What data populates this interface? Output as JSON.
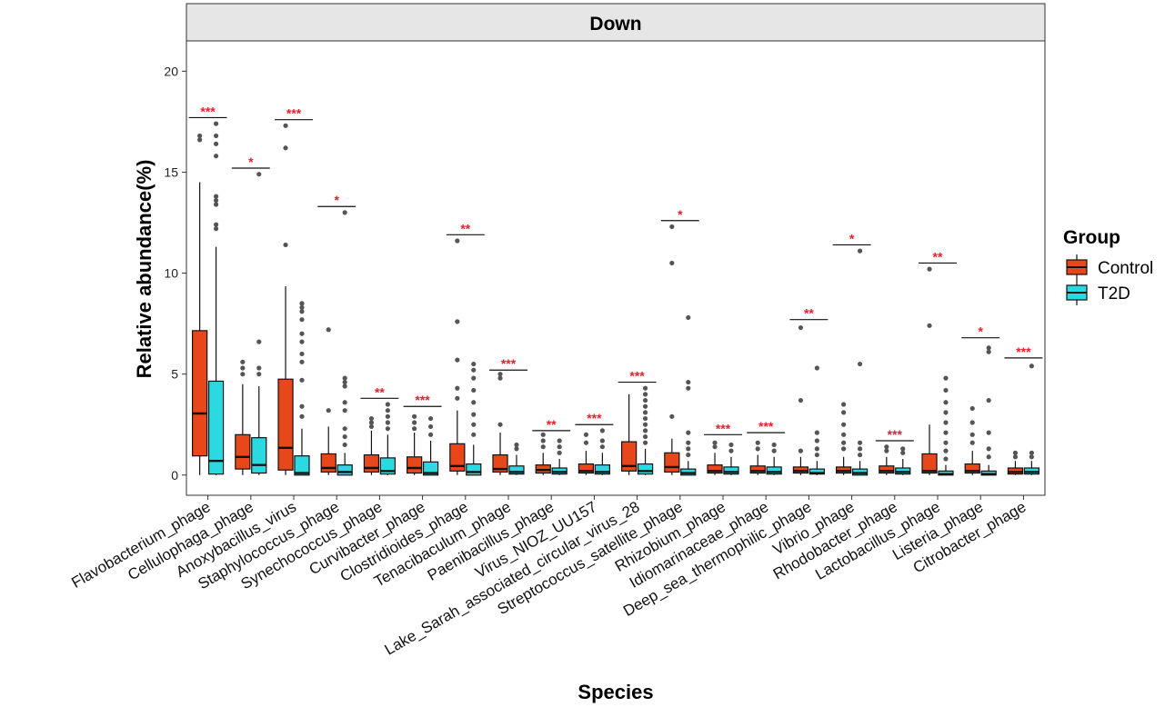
{
  "chart_data": {
    "type": "boxplot",
    "facet_title": "Down",
    "xlabel": "Species",
    "ylabel": "Relative abundance(%)",
    "ylim": [
      -1.0,
      21.5
    ],
    "yticks": [
      0,
      5,
      10,
      15,
      20
    ],
    "legend": {
      "title": "Group",
      "position": "right",
      "entries": [
        {
          "name": "Control",
          "color": "#E8461B"
        },
        {
          "name": "T2D",
          "color": "#2BD9E0"
        }
      ]
    },
    "significance_color": "#E8202A",
    "categories": [
      {
        "name": "Flavobacterium_phage",
        "sig": "***",
        "sig_y": 17.7,
        "control": {
          "min": 0,
          "q1": 0.95,
          "median": 3.05,
          "q3": 7.15,
          "max": 14.5,
          "outliers": [
            16.6,
            16.8
          ]
        },
        "t2d": {
          "min": 0,
          "q1": 0.05,
          "median": 0.7,
          "q3": 4.65,
          "max": 11.3,
          "outliers": [
            12.2,
            12.4,
            13.4,
            13.6,
            13.8,
            15.8,
            16.4,
            16.8,
            17.4
          ]
        }
      },
      {
        "name": "Cellulophaga_phage",
        "sig": "*",
        "sig_y": 15.2,
        "control": {
          "min": 0,
          "q1": 0.3,
          "median": 0.9,
          "q3": 2.0,
          "max": 4.5,
          "outliers": [
            5.0,
            5.3,
            5.6
          ]
        },
        "t2d": {
          "min": 0,
          "q1": 0.1,
          "median": 0.5,
          "q3": 1.85,
          "max": 4.4,
          "outliers": [
            5.0,
            5.3,
            6.6,
            14.9
          ]
        }
      },
      {
        "name": "Anoxybacillus_virus",
        "sig": "***",
        "sig_y": 17.6,
        "control": {
          "min": 0,
          "q1": 0.25,
          "median": 1.35,
          "q3": 4.75,
          "max": 9.35,
          "outliers": [
            11.4,
            16.2,
            17.3
          ]
        },
        "t2d": {
          "min": 0,
          "q1": 0.0,
          "median": 0.1,
          "q3": 0.95,
          "max": 2.3,
          "outliers": [
            2.9,
            3.4,
            4.7,
            5.6,
            6.0,
            6.6,
            7.0,
            7.7,
            8.1,
            8.3,
            8.5
          ]
        }
      },
      {
        "name": "Staphylococcus_phage",
        "sig": "*",
        "sig_y": 13.3,
        "control": {
          "min": 0,
          "q1": 0.15,
          "median": 0.35,
          "q3": 1.05,
          "max": 2.4,
          "outliers": [
            3.2,
            7.2
          ]
        },
        "t2d": {
          "min": 0,
          "q1": 0.0,
          "median": 0.15,
          "q3": 0.5,
          "max": 1.1,
          "outliers": [
            1.5,
            1.9,
            2.3,
            3.2,
            3.6,
            4.4,
            4.6,
            4.8,
            13.0
          ]
        }
      },
      {
        "name": "Synechococcus_phage",
        "sig": "**",
        "sig_y": 3.8,
        "control": {
          "min": 0,
          "q1": 0.15,
          "median": 0.35,
          "q3": 1.0,
          "max": 2.2,
          "outliers": [
            2.4,
            2.6,
            2.8
          ]
        },
        "t2d": {
          "min": 0,
          "q1": 0.05,
          "median": 0.2,
          "q3": 0.85,
          "max": 2.0,
          "outliers": [
            2.3,
            2.6,
            2.9,
            3.2,
            3.5
          ]
        }
      },
      {
        "name": "Curvibacter_phage",
        "sig": "***",
        "sig_y": 3.4,
        "control": {
          "min": 0,
          "q1": 0.1,
          "median": 0.35,
          "q3": 0.9,
          "max": 2.1,
          "outliers": [
            2.3,
            2.6,
            2.9
          ]
        },
        "t2d": {
          "min": 0,
          "q1": 0.0,
          "median": 0.1,
          "q3": 0.65,
          "max": 1.7,
          "outliers": [
            2.0,
            2.4,
            2.8
          ]
        }
      },
      {
        "name": "Clostridioides_phage",
        "sig": "**",
        "sig_y": 11.9,
        "control": {
          "min": 0,
          "q1": 0.2,
          "median": 0.45,
          "q3": 1.55,
          "max": 3.2,
          "outliers": [
            3.8,
            4.3,
            5.7,
            7.6,
            11.6
          ]
        },
        "t2d": {
          "min": 0,
          "q1": 0.0,
          "median": 0.15,
          "q3": 0.55,
          "max": 1.5,
          "outliers": [
            2.0,
            2.5,
            3.0,
            3.6,
            4.2,
            4.8,
            5.2,
            5.5
          ]
        }
      },
      {
        "name": "Tenacibaculum_phage",
        "sig": "***",
        "sig_y": 5.2,
        "control": {
          "min": 0,
          "q1": 0.15,
          "median": 0.3,
          "q3": 1.0,
          "max": 2.1,
          "outliers": [
            2.5,
            4.8,
            5.0
          ]
        },
        "t2d": {
          "min": 0,
          "q1": 0.05,
          "median": 0.15,
          "q3": 0.45,
          "max": 1.0,
          "outliers": [
            1.3,
            1.5
          ]
        }
      },
      {
        "name": "Paenibacillus_phage",
        "sig": "**",
        "sig_y": 2.2,
        "control": {
          "min": 0,
          "q1": 0.1,
          "median": 0.25,
          "q3": 0.5,
          "max": 1.1,
          "outliers": [
            1.4,
            1.7,
            2.0
          ]
        },
        "t2d": {
          "min": 0,
          "q1": 0.05,
          "median": 0.15,
          "q3": 0.35,
          "max": 0.8,
          "outliers": [
            1.1,
            1.4,
            1.7
          ]
        }
      },
      {
        "name": "Virus_NIOZ_UU157",
        "sig": "***",
        "sig_y": 2.5,
        "control": {
          "min": 0,
          "q1": 0.1,
          "median": 0.2,
          "q3": 0.55,
          "max": 1.2,
          "outliers": [
            1.6,
            2.0
          ]
        },
        "t2d": {
          "min": 0,
          "q1": 0.05,
          "median": 0.15,
          "q3": 0.5,
          "max": 1.1,
          "outliers": [
            1.4,
            1.7,
            2.2
          ]
        }
      },
      {
        "name": "Lake_Sarah_associated_circular_virus_28",
        "sig": "***",
        "sig_y": 4.6,
        "control": {
          "min": 0,
          "q1": 0.2,
          "median": 0.45,
          "q3": 1.65,
          "max": 4.0,
          "outliers": []
        },
        "t2d": {
          "min": 0,
          "q1": 0.05,
          "median": 0.2,
          "q3": 0.55,
          "max": 1.3,
          "outliers": [
            1.6,
            1.9,
            2.2,
            2.5,
            2.8,
            3.1,
            3.4,
            3.7,
            4.0,
            4.3
          ]
        }
      },
      {
        "name": "Streptococcus_satellite_phage",
        "sig": "*",
        "sig_y": 12.6,
        "control": {
          "min": 0,
          "q1": 0.15,
          "median": 0.4,
          "q3": 1.1,
          "max": 1.8,
          "outliers": [
            2.9,
            10.5,
            12.3
          ]
        },
        "t2d": {
          "min": 0,
          "q1": 0.0,
          "median": 0.1,
          "q3": 0.3,
          "max": 0.7,
          "outliers": [
            1.0,
            1.3,
            1.6,
            2.1,
            4.3,
            4.6,
            7.8
          ]
        }
      },
      {
        "name": "Rhizobium_phage",
        "sig": "***",
        "sig_y": 2.0,
        "control": {
          "min": 0,
          "q1": 0.1,
          "median": 0.2,
          "q3": 0.5,
          "max": 1.1,
          "outliers": [
            1.4,
            1.6
          ]
        },
        "t2d": {
          "min": 0,
          "q1": 0.05,
          "median": 0.15,
          "q3": 0.4,
          "max": 0.9,
          "outliers": [
            1.2,
            1.5
          ]
        }
      },
      {
        "name": "Idiomarinaceae_phage",
        "sig": "***",
        "sig_y": 2.1,
        "control": {
          "min": 0,
          "q1": 0.1,
          "median": 0.2,
          "q3": 0.45,
          "max": 1.0,
          "outliers": [
            1.3,
            1.6
          ]
        },
        "t2d": {
          "min": 0,
          "q1": 0.05,
          "median": 0.15,
          "q3": 0.4,
          "max": 0.9,
          "outliers": [
            1.2,
            1.5
          ]
        }
      },
      {
        "name": "Deep_sea_thermophilic_phage",
        "sig": "**",
        "sig_y": 7.7,
        "control": {
          "min": 0,
          "q1": 0.1,
          "median": 0.2,
          "q3": 0.4,
          "max": 0.9,
          "outliers": [
            1.2,
            3.7,
            7.3
          ]
        },
        "t2d": {
          "min": 0,
          "q1": 0.05,
          "median": 0.1,
          "q3": 0.3,
          "max": 0.7,
          "outliers": [
            1.0,
            1.3,
            1.7,
            2.1,
            5.3
          ]
        }
      },
      {
        "name": "Vibrio_phage",
        "sig": "*",
        "sig_y": 11.4,
        "control": {
          "min": 0,
          "q1": 0.1,
          "median": 0.2,
          "q3": 0.4,
          "max": 0.9,
          "outliers": [
            1.3,
            1.6,
            2.0,
            2.5,
            3.1,
            3.5
          ]
        },
        "t2d": {
          "min": 0,
          "q1": 0.0,
          "median": 0.1,
          "q3": 0.3,
          "max": 0.7,
          "outliers": [
            1.0,
            1.3,
            1.6,
            5.5,
            11.1
          ]
        }
      },
      {
        "name": "Rhodobacter_phage",
        "sig": "***",
        "sig_y": 1.7,
        "control": {
          "min": 0,
          "q1": 0.1,
          "median": 0.2,
          "q3": 0.45,
          "max": 0.9,
          "outliers": [
            1.2,
            1.4
          ]
        },
        "t2d": {
          "min": 0,
          "q1": 0.05,
          "median": 0.15,
          "q3": 0.35,
          "max": 0.8,
          "outliers": [
            1.1,
            1.3
          ]
        }
      },
      {
        "name": "Lactobacillus_phage",
        "sig": "**",
        "sig_y": 10.5,
        "control": {
          "min": 0,
          "q1": 0.1,
          "median": 0.2,
          "q3": 1.05,
          "max": 2.5,
          "outliers": [
            7.4,
            10.2
          ]
        },
        "t2d": {
          "min": 0,
          "q1": 0.0,
          "median": 0.05,
          "q3": 0.2,
          "max": 0.5,
          "outliers": [
            0.8,
            1.2,
            1.6,
            2.1,
            2.6,
            3.1,
            3.6,
            4.2,
            4.8
          ]
        }
      },
      {
        "name": "Listeria_phage",
        "sig": "*",
        "sig_y": 6.8,
        "control": {
          "min": 0,
          "q1": 0.1,
          "median": 0.2,
          "q3": 0.55,
          "max": 1.2,
          "outliers": [
            1.6,
            2.0,
            2.6,
            3.3
          ]
        },
        "t2d": {
          "min": 0,
          "q1": 0.0,
          "median": 0.05,
          "q3": 0.2,
          "max": 0.5,
          "outliers": [
            0.9,
            1.3,
            2.1,
            3.7,
            6.1,
            6.3
          ]
        }
      },
      {
        "name": "Citrobacter_phage",
        "sig": "***",
        "sig_y": 5.8,
        "control": {
          "min": 0,
          "q1": 0.05,
          "median": 0.15,
          "q3": 0.35,
          "max": 0.7,
          "outliers": [
            0.9,
            1.1
          ]
        },
        "t2d": {
          "min": 0,
          "q1": 0.05,
          "median": 0.15,
          "q3": 0.35,
          "max": 0.7,
          "outliers": [
            0.9,
            1.1,
            5.4
          ]
        }
      }
    ]
  }
}
